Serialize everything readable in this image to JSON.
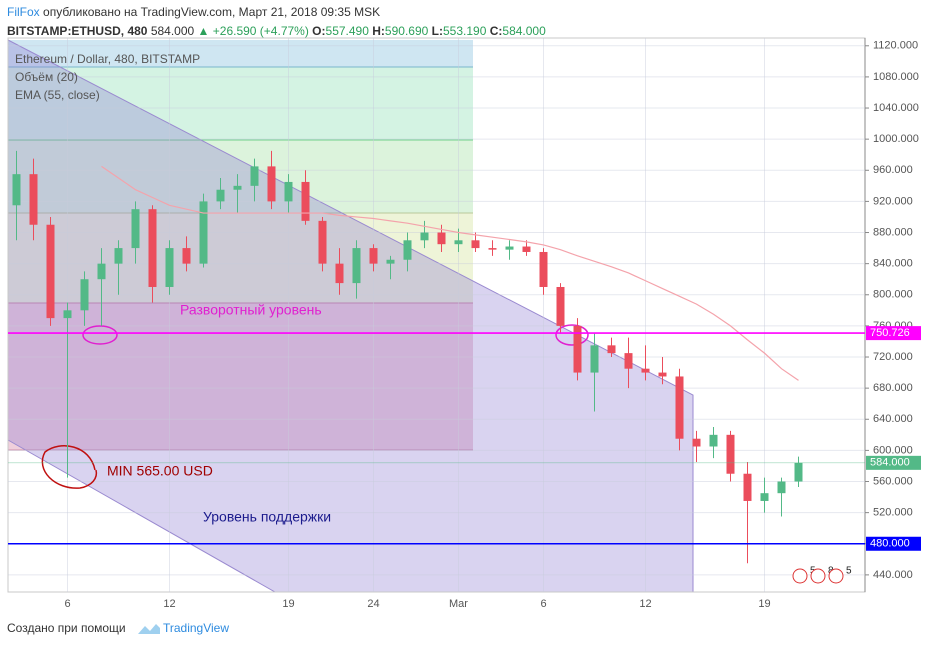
{
  "header": {
    "author": "FilFox",
    "published": "опубликовано на TradingView.com, Март 21, 2018 09:35 MSK",
    "symbol": "BITSTAMP:ETHUSD, 480",
    "last": "584.000",
    "change": "▲ +26.590 (+4.77%)",
    "o_label": "O:",
    "o": "557.490",
    "h_label": "H:",
    "h": "590.690",
    "l_label": "L:",
    "l": "553.190",
    "c_label": "C:",
    "c": "584.000"
  },
  "footer": {
    "text": "Создано при помощи",
    "brand": "TradingView"
  },
  "chart_data": {
    "type": "candlestick",
    "symbol_name": "Ethereum / Dollar, 480, BITSTAMP",
    "volume_name": "Объём (20)",
    "up_color": "#53b987",
    "down_color": "#eb4d5c",
    "grid": true,
    "categories": [
      null,
      null,
      null,
      "6",
      null,
      null,
      null,
      null,
      null,
      "12",
      null,
      null,
      null,
      null,
      null,
      null,
      "19",
      null,
      null,
      null,
      null,
      "24",
      null,
      null,
      null,
      null,
      "Mar",
      null,
      null,
      null,
      null,
      "6",
      null,
      null,
      null,
      null,
      null,
      "12",
      null,
      null,
      null,
      null,
      null,
      null,
      "19",
      null,
      null
    ],
    "open": [
      915,
      955,
      890,
      770,
      780,
      820,
      840,
      860,
      910,
      810,
      860,
      840,
      920,
      935,
      940,
      965,
      920,
      945,
      895,
      840,
      815,
      860,
      840,
      845,
      870,
      880,
      865,
      870,
      860,
      858,
      862,
      855,
      810,
      760,
      700,
      735,
      725,
      705,
      700,
      695,
      615,
      605,
      620,
      570,
      535,
      545,
      560
    ],
    "high": [
      985,
      975,
      900,
      790,
      830,
      860,
      870,
      920,
      915,
      870,
      875,
      930,
      950,
      955,
      975,
      985,
      955,
      960,
      900,
      860,
      870,
      865,
      850,
      880,
      895,
      890,
      885,
      880,
      870,
      870,
      870,
      860,
      815,
      770,
      750,
      745,
      745,
      735,
      720,
      705,
      625,
      630,
      625,
      585,
      565,
      565,
      592
    ],
    "low": [
      870,
      870,
      760,
      565,
      760,
      760,
      800,
      840,
      790,
      800,
      830,
      835,
      910,
      905,
      920,
      910,
      905,
      890,
      830,
      800,
      795,
      830,
      820,
      830,
      860,
      855,
      855,
      855,
      850,
      845,
      850,
      800,
      750,
      690,
      650,
      720,
      680,
      690,
      685,
      600,
      585,
      590,
      560,
      455,
      520,
      515,
      553
    ],
    "close": [
      955,
      890,
      770,
      780,
      820,
      840,
      860,
      910,
      810,
      860,
      840,
      920,
      935,
      940,
      965,
      920,
      945,
      895,
      840,
      815,
      860,
      840,
      845,
      870,
      880,
      865,
      870,
      860,
      858,
      862,
      855,
      810,
      760,
      700,
      735,
      725,
      705,
      700,
      695,
      615,
      605,
      620,
      570,
      535,
      545,
      560,
      584
    ],
    "ema": {
      "name": "EMA (55, close)",
      "color": "#f4a3ab",
      "values": [
        null,
        null,
        null,
        null,
        null,
        965,
        950,
        935,
        925,
        915,
        910,
        905,
        905,
        905,
        905,
        905,
        905,
        905,
        905,
        902,
        900,
        898,
        895,
        892,
        888,
        884,
        880,
        877,
        874,
        871,
        868,
        864,
        858,
        850,
        843,
        836,
        828,
        818,
        808,
        798,
        788,
        775,
        760,
        742,
        725,
        705,
        690
      ]
    },
    "ylim": [
      418,
      1130
    ],
    "yticks": [
      {
        "value": 440,
        "label": "440.000"
      },
      {
        "value": 480,
        "label": "480.000"
      },
      {
        "value": 520,
        "label": "520.000"
      },
      {
        "value": 560,
        "label": "560.000"
      },
      {
        "value": 600,
        "label": "600.000"
      },
      {
        "value": 640,
        "label": "640.000"
      },
      {
        "value": 680,
        "label": "680.000"
      },
      {
        "value": 720,
        "label": "720.000"
      },
      {
        "value": 760,
        "label": "760.000"
      },
      {
        "value": 800,
        "label": "800.000"
      },
      {
        "value": 840,
        "label": "840.000"
      },
      {
        "value": 880,
        "label": "880.000"
      },
      {
        "value": 920,
        "label": "920.000"
      },
      {
        "value": 960,
        "label": "960.000"
      },
      {
        "value": 1000,
        "label": "1000.000"
      },
      {
        "value": 1040,
        "label": "1040.000"
      },
      {
        "value": 1080,
        "label": "1080.000"
      },
      {
        "value": 1120,
        "label": "1120.000"
      }
    ],
    "levels": [
      {
        "value": 750.726,
        "label": "750.726",
        "color": "#ff00ff"
      },
      {
        "value": 480,
        "label": "480.000",
        "color": "#0000ff"
      },
      {
        "value": 584,
        "label": "584.000",
        "color": "#53b987"
      }
    ],
    "annotations": {
      "reversal": "Разворотный уровень",
      "min": "MIN 565.00 USD",
      "support": "Уровень поддержки"
    },
    "events": [
      "5",
      "8",
      "5"
    ]
  }
}
